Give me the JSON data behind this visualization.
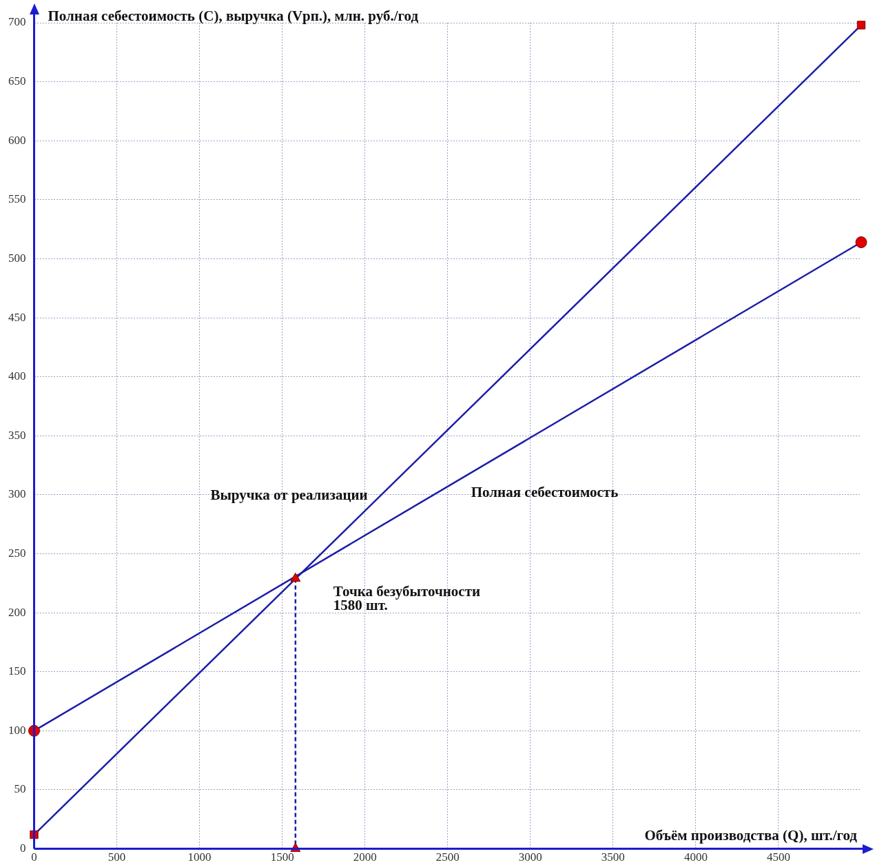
{
  "chart_data": {
    "type": "line",
    "xlabel": "Объём производства (Q), шт./год",
    "ylabel": "Полная себестоимость (С), выручка (Vрп.), млн. руб./год",
    "xlim": [
      0,
      5000
    ],
    "xticks": [
      0,
      500,
      1000,
      1500,
      2000,
      2500,
      3000,
      3500,
      4000,
      4500
    ],
    "ylim": [
      0,
      700
    ],
    "yticks": [
      0,
      50,
      100,
      150,
      200,
      250,
      300,
      350,
      400,
      450,
      500,
      550,
      600,
      650,
      700
    ],
    "grid": true,
    "series": [
      {
        "name": "Выручка от реализации",
        "color": "#1c1ca8",
        "x": [
          0,
          5000
        ],
        "values": [
          12,
          698
        ],
        "marker": "none",
        "line_style": "solid"
      },
      {
        "name": "Полная себестоимость",
        "color": "#1c1ca8",
        "x": [
          0,
          5000
        ],
        "values": [
          100,
          514
        ],
        "marker": "none",
        "line_style": "solid"
      },
      {
        "color": "#1c1ca8",
        "x": [
          1580,
          1580
        ],
        "values": [
          229,
          0
        ],
        "marker": "none",
        "line_style": "dashed"
      },
      {
        "type": "scatter",
        "color": "#e00000",
        "x": [
          0,
          5000
        ],
        "values": [
          12,
          698
        ],
        "marker": "square"
      },
      {
        "type": "scatter",
        "color": "#e00000",
        "x": [
          0,
          5000
        ],
        "values": [
          100,
          514
        ],
        "marker": "circle"
      },
      {
        "type": "scatter",
        "color": "#e00000",
        "x": [
          1580,
          1580
        ],
        "values": [
          229,
          0
        ],
        "marker": "triangle"
      }
    ],
    "annotations": [
      "Точка безубыточности\n1580 шт."
    ]
  }
}
